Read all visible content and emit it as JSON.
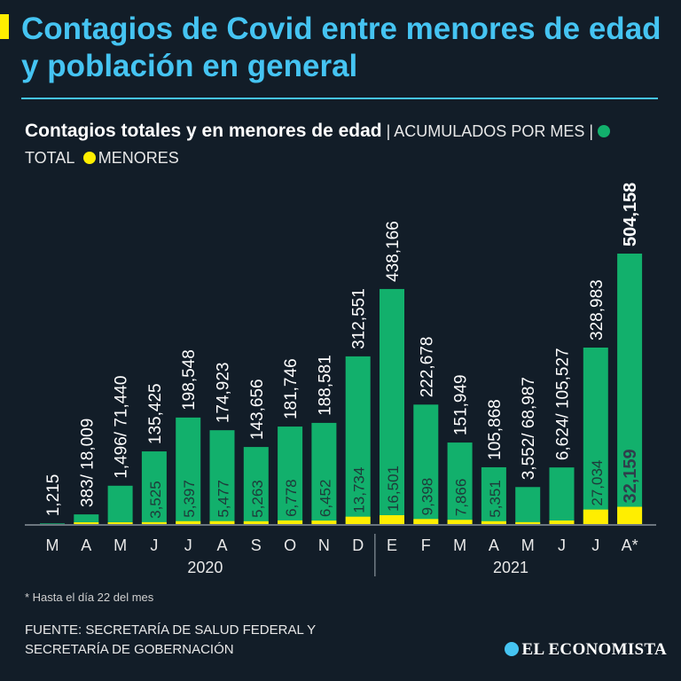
{
  "headline": "Contagios de Covid entre menores de edad y población en general",
  "subtitle": {
    "main": "Contagios totales y en menores de edad",
    "sep1": " | ",
    "accum": "ACUMULADOS POR MES",
    "sep2": " | ",
    "legend_total": "TOTAL",
    "legend_minors": "MENORES"
  },
  "colors": {
    "total": "#12b06c",
    "minors": "#ffee00",
    "accent": "#45c4f2",
    "background": "#121d28"
  },
  "chart_data": {
    "type": "bar",
    "title": "Contagios totales y en menores de edad",
    "categories": [
      "M",
      "A",
      "M",
      "J",
      "J",
      "A",
      "S",
      "O",
      "N",
      "D",
      "E",
      "F",
      "M",
      "A",
      "M",
      "J",
      "J",
      "A*"
    ],
    "year_groups": [
      {
        "label": "2020",
        "from": 0,
        "to": 9
      },
      {
        "label": "2021",
        "from": 10,
        "to": 17
      }
    ],
    "series": [
      {
        "name": "TOTAL",
        "values": [
          1215,
          18009,
          71440,
          135425,
          198548,
          174923,
          143656,
          181746,
          188581,
          312551,
          438166,
          222678,
          151949,
          105868,
          68987,
          105527,
          328983,
          504158
        ]
      },
      {
        "name": "MENORES",
        "values": [
          null,
          383,
          1496,
          3525,
          5397,
          5477,
          5263,
          6778,
          6452,
          13734,
          16501,
          9398,
          7866,
          5351,
          3552,
          6624,
          27034,
          32159
        ]
      }
    ],
    "total_labels": [
      "1,215",
      "383/ 18,009",
      "1,496/ 71,440",
      "135,425",
      "198,548",
      "174,923",
      "143,656",
      "181,746",
      "188,581",
      "312,551",
      "438,166",
      "222,678",
      "151,949",
      "105,868",
      "3,552/ 68,987",
      "6,624/ 105,527",
      "328,983",
      "504,158"
    ],
    "minor_labels": [
      null,
      null,
      null,
      "3,525",
      "5,397",
      "5,477",
      "5,263",
      "6,778",
      "6,452",
      "13,734",
      "16,501",
      "9,398",
      "7,866",
      "5,351",
      null,
      null,
      "27,034",
      "32,159"
    ],
    "ylim": [
      0,
      504158
    ]
  },
  "footnote": "* Hasta el día 22 del mes",
  "source_line1": "FUENTE: SECRETARÍA DE SALUD FEDERAL Y",
  "source_line2": "SECRETARÍA DE GOBERNACIÓN",
  "brand": "EL ECONOMISTA"
}
